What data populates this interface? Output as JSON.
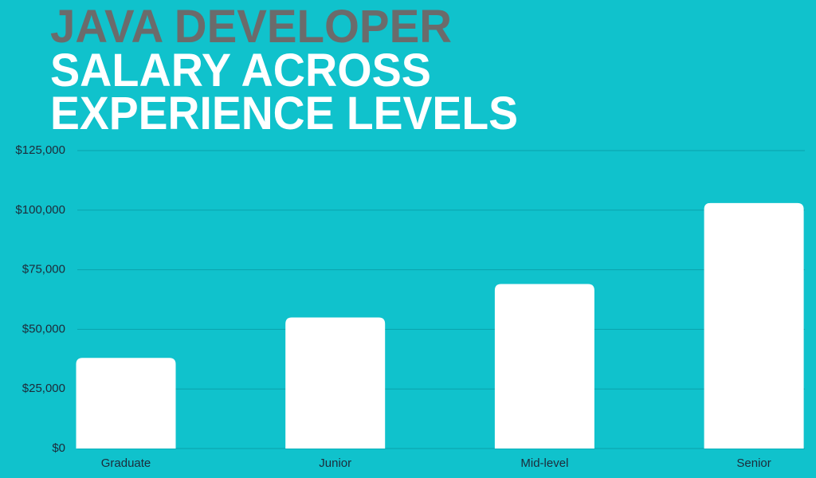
{
  "chart_data": {
    "type": "bar",
    "title": [
      "JAVA DEVELOPER",
      "SALARY ACROSS",
      "EXPERIENCE LEVELS"
    ],
    "categories": [
      "Graduate",
      "Junior",
      "Mid-level",
      "Senior"
    ],
    "values": [
      38000,
      55000,
      69000,
      103000
    ],
    "color": "#ffffff",
    "ylim": [
      0,
      125000
    ],
    "yticks": [
      {
        "value": 0,
        "label": "$0"
      },
      {
        "value": 25000,
        "label": "$25,000"
      },
      {
        "value": 50000,
        "label": "$50,000"
      },
      {
        "value": 75000,
        "label": "$75,000"
      },
      {
        "value": 100000,
        "label": "$100,000"
      },
      {
        "value": 125000,
        "label": "$125,000"
      }
    ],
    "grid": true
  }
}
